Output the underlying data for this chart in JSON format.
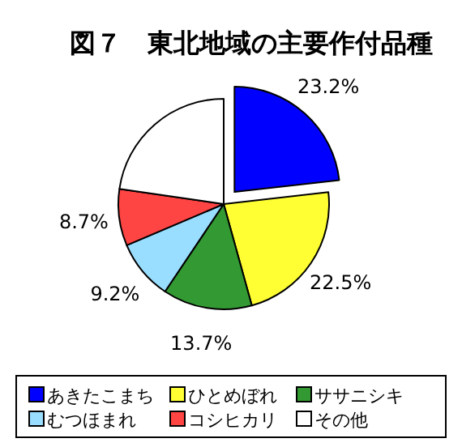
{
  "chart_data": {
    "type": "pie",
    "title": "図７　東北地域の主要作付品種",
    "categories": [
      "あきたこまち",
      "ひとめぼれ",
      "ササニシキ",
      "むつほまれ",
      "コシヒカリ",
      "その他"
    ],
    "values": [
      23.2,
      22.5,
      13.7,
      9.2,
      8.7,
      22.7
    ],
    "colors": [
      "#0000ff",
      "#ffff33",
      "#339933",
      "#99ddff",
      "#ff4444",
      "#ffffff"
    ],
    "value_labels": [
      "23.2%",
      "22.5%",
      "13.7%",
      "9.2%",
      "8.7%",
      null
    ],
    "legend": "bottom"
  }
}
